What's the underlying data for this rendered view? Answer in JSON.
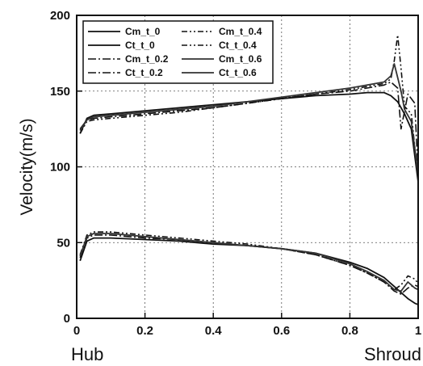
{
  "chart_data": {
    "type": "line",
    "title": "",
    "xlabel": "",
    "ylabel": "Velocity(m/s)",
    "x_end_labels": {
      "left": "Hub",
      "right": "Shroud"
    },
    "xlim": [
      0,
      1
    ],
    "ylim": [
      0,
      200
    ],
    "xticks": [
      0,
      0.2,
      0.4,
      0.6,
      0.8,
      1
    ],
    "xtick_labels": [
      "0",
      "0.2",
      "0.4",
      "0.6",
      "0.8",
      "1"
    ],
    "yticks": [
      0,
      50,
      100,
      150,
      200
    ],
    "ytick_labels": [
      "0",
      "50",
      "100",
      "150",
      "200"
    ],
    "grid": true,
    "legend_position": "top-left",
    "series": [
      {
        "name": "Cm_t_0",
        "style": "solid",
        "color": "#111111",
        "x": [
          0.01,
          0.03,
          0.05,
          0.1,
          0.2,
          0.3,
          0.4,
          0.5,
          0.6,
          0.7,
          0.8,
          0.85,
          0.9,
          0.93,
          0.95,
          0.97,
          0.99,
          1.0
        ],
        "y": [
          38,
          51,
          53,
          53,
          52,
          51,
          49,
          48,
          46,
          43,
          37,
          33,
          27,
          21,
          17,
          13,
          10,
          9
        ]
      },
      {
        "name": "Ct_t_0",
        "style": "solid",
        "color": "#111111",
        "x": [
          0.01,
          0.03,
          0.05,
          0.1,
          0.2,
          0.3,
          0.4,
          0.5,
          0.6,
          0.7,
          0.8,
          0.85,
          0.88,
          0.9,
          0.92,
          0.94,
          0.96,
          0.98,
          1.0
        ],
        "y": [
          122,
          132,
          134,
          135,
          137,
          139,
          141,
          143,
          145,
          147,
          148,
          149,
          149,
          149,
          147,
          143,
          135,
          125,
          90
        ]
      },
      {
        "name": "Cm_t_0.2",
        "style": "dashdot",
        "color": "#111111",
        "x": [
          0.01,
          0.03,
          0.05,
          0.1,
          0.2,
          0.3,
          0.4,
          0.5,
          0.6,
          0.7,
          0.8,
          0.85,
          0.9,
          0.93,
          0.95,
          0.97,
          0.99,
          1.0
        ],
        "y": [
          40,
          53,
          55,
          55,
          53,
          52,
          50,
          48,
          46,
          42,
          35,
          30,
          24,
          18,
          16,
          20,
          22,
          21
        ]
      },
      {
        "name": "Ct_t_0.2",
        "style": "dashdot",
        "color": "#111111",
        "x": [
          0.01,
          0.03,
          0.05,
          0.1,
          0.2,
          0.3,
          0.4,
          0.5,
          0.6,
          0.7,
          0.8,
          0.85,
          0.9,
          0.92,
          0.94,
          0.95,
          0.97,
          0.99,
          1.0
        ],
        "y": [
          125,
          131,
          132,
          133,
          135,
          137,
          139,
          142,
          145,
          148,
          150,
          152,
          154,
          156,
          152,
          125,
          148,
          142,
          95
        ]
      },
      {
        "name": "Cm_t_0.4",
        "style": "dashdotdot",
        "color": "#111111",
        "x": [
          0.01,
          0.03,
          0.05,
          0.1,
          0.2,
          0.3,
          0.4,
          0.5,
          0.6,
          0.7,
          0.8,
          0.85,
          0.9,
          0.93,
          0.95,
          0.97,
          0.99,
          1.0
        ],
        "y": [
          42,
          55,
          57,
          57,
          55,
          53,
          51,
          49,
          46,
          42,
          35,
          30,
          24,
          19,
          22,
          28,
          26,
          23
        ]
      },
      {
        "name": "Ct_t_0.4",
        "style": "dashdotdot",
        "color": "#111111",
        "x": [
          0.01,
          0.03,
          0.05,
          0.1,
          0.2,
          0.3,
          0.4,
          0.5,
          0.6,
          0.7,
          0.8,
          0.85,
          0.9,
          0.92,
          0.93,
          0.94,
          0.95,
          0.96,
          0.98,
          1.0
        ],
        "y": [
          122,
          130,
          131,
          132,
          134,
          136,
          139,
          142,
          145,
          148,
          151,
          153,
          155,
          158,
          170,
          187,
          165,
          140,
          135,
          92
        ]
      },
      {
        "name": "Cm_t_0.6",
        "style": "solid",
        "color": "#333333",
        "x": [
          0.01,
          0.03,
          0.05,
          0.1,
          0.2,
          0.3,
          0.4,
          0.5,
          0.6,
          0.7,
          0.8,
          0.85,
          0.9,
          0.93,
          0.95,
          0.97,
          0.99,
          1.0
        ],
        "y": [
          41,
          54,
          56,
          56,
          54,
          52,
          50,
          48,
          46,
          43,
          36,
          31,
          25,
          19,
          18,
          24,
          20,
          19
        ]
      },
      {
        "name": "Ct_t_0.6",
        "style": "solid",
        "color": "#333333",
        "x": [
          0.01,
          0.03,
          0.05,
          0.1,
          0.2,
          0.3,
          0.4,
          0.5,
          0.6,
          0.7,
          0.8,
          0.85,
          0.9,
          0.92,
          0.93,
          0.95,
          0.96,
          0.98,
          1.0
        ],
        "y": [
          124,
          131,
          133,
          134,
          136,
          138,
          140,
          143,
          146,
          149,
          152,
          154,
          156,
          160,
          168,
          150,
          138,
          130,
          95
        ]
      }
    ]
  }
}
